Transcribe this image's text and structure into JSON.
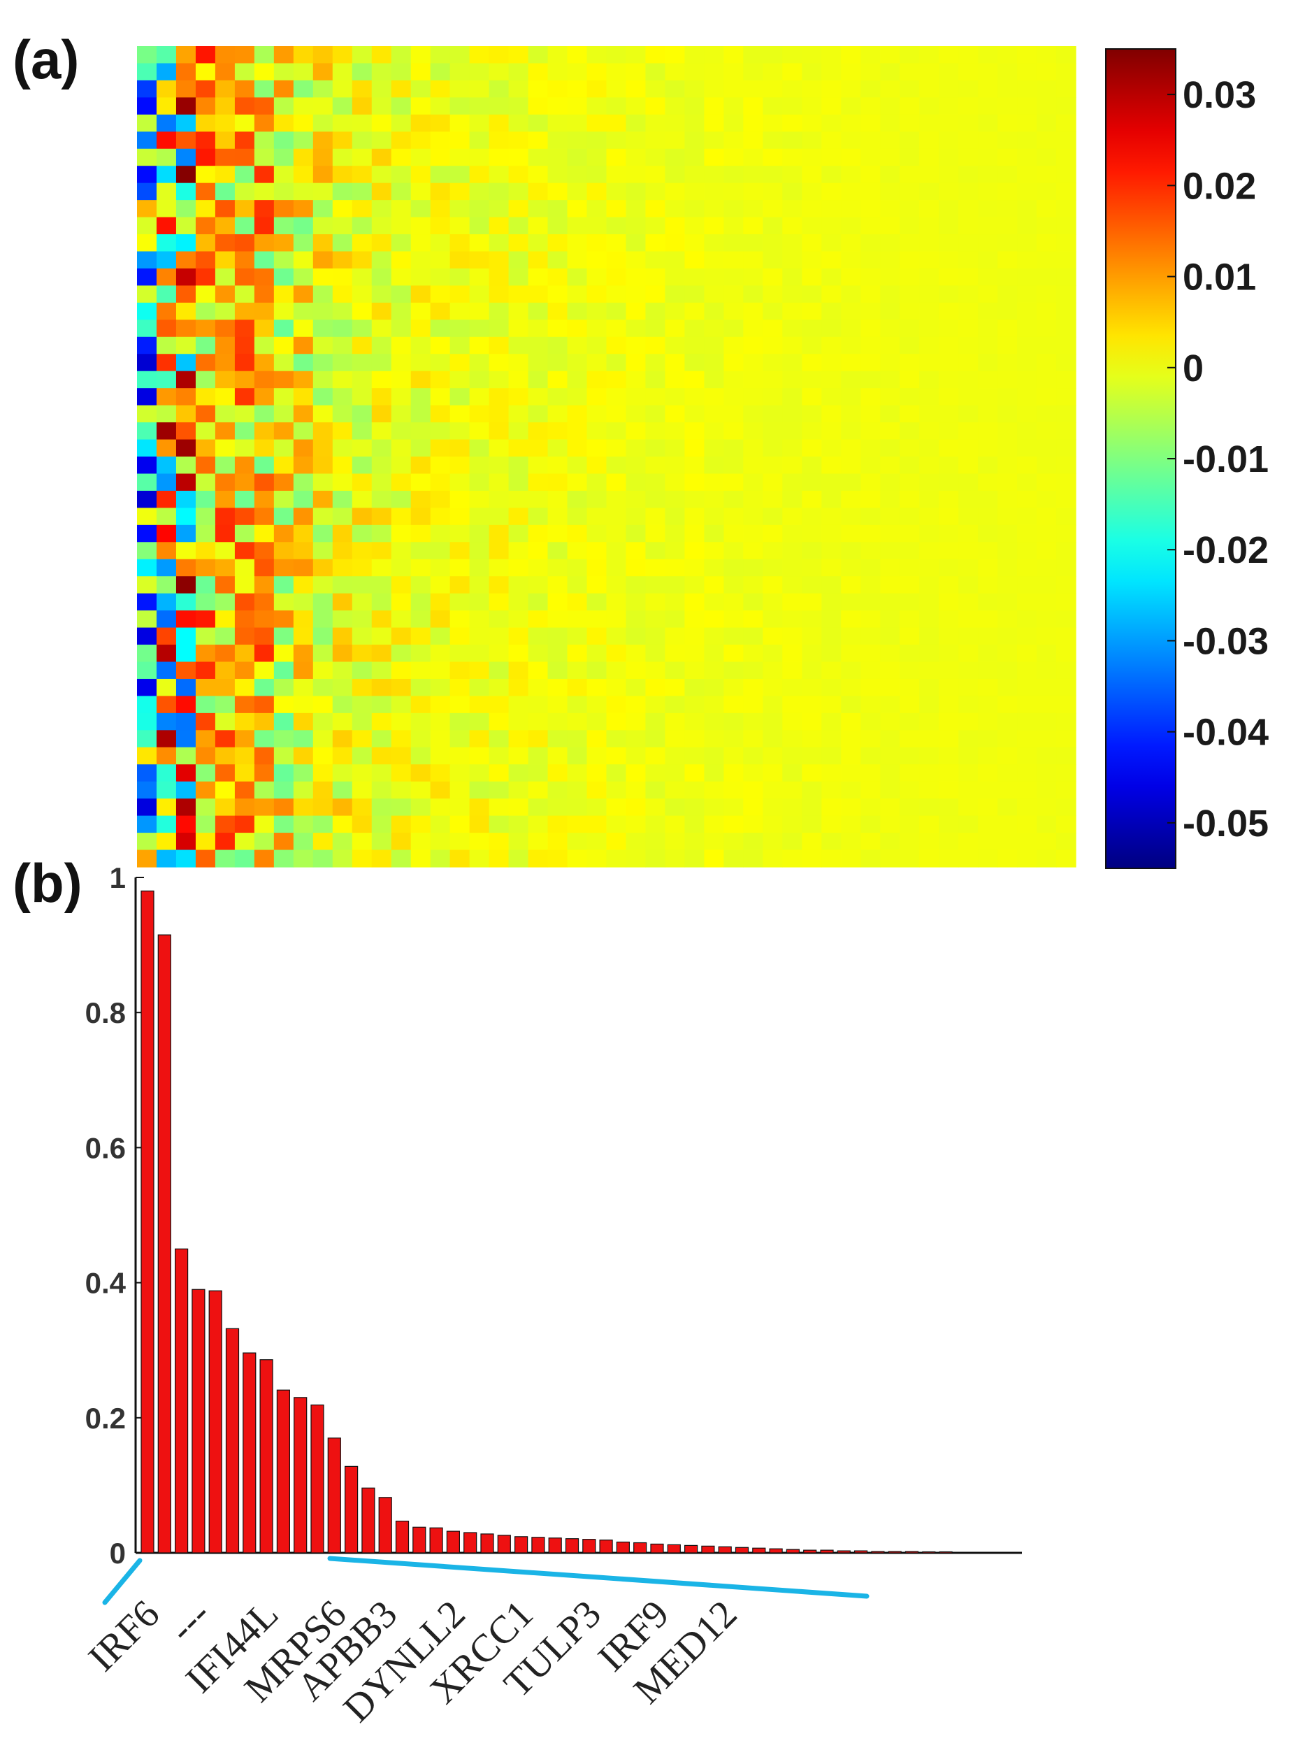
{
  "panels": {
    "a_label": "(a)",
    "b_label": "(b)"
  },
  "chart_data": [
    {
      "type": "heatmap",
      "panel": "(a)",
      "rows": 48,
      "columns": 48,
      "colormap": "jet",
      "clim": [
        -0.055,
        0.035
      ],
      "colorbar_ticks": [
        "0.03",
        "0.02",
        "0.01",
        "0",
        "-0.01",
        "-0.02",
        "-0.03",
        "-0.04",
        "-0.05"
      ],
      "colorbar_tick_values": [
        0.03,
        0.02,
        0.01,
        0,
        -0.01,
        -0.02,
        -0.03,
        -0.04,
        -0.05
      ],
      "colorbar_placement": "right",
      "description_of_pattern": "Large positive/negative weights concentrated in the left ~14 columns; values decay toward 0 (yellow) for columns further right."
    },
    {
      "type": "bar",
      "panel": "(b)",
      "bar_color": "#ee1111",
      "ylim": [
        0,
        1
      ],
      "yticks": [
        "0",
        "0.2",
        "0.4",
        "0.6",
        "0.8",
        "1"
      ],
      "ytick_values": [
        0,
        0.2,
        0.4,
        0.6,
        0.8,
        1
      ],
      "values": [
        0.98,
        0.915,
        0.45,
        0.39,
        0.388,
        0.332,
        0.296,
        0.286,
        0.241,
        0.23,
        0.219,
        0.17,
        0.128,
        0.096,
        0.082,
        0.047,
        0.038,
        0.037,
        0.032,
        0.03,
        0.028,
        0.026,
        0.024,
        0.023,
        0.022,
        0.021,
        0.02,
        0.019,
        0.016,
        0.015,
        0.013,
        0.012,
        0.011,
        0.01,
        0.009,
        0.008,
        0.007,
        0.006,
        0.005,
        0.004,
        0.004,
        0.003,
        0.003,
        0.002,
        0.002,
        0.002,
        0.001,
        0.001
      ],
      "xtick_labels": [
        "IRF6",
        "---",
        "IFI44L",
        "MRPS6",
        "APBB3",
        "DYNLL2",
        "XRCC1",
        "TULP3",
        "IRF9",
        "MED12"
      ],
      "xtick_positions": [
        1,
        4,
        8,
        12,
        15,
        19,
        23,
        27,
        31,
        35
      ],
      "annotation_color": "#1ab4e6"
    }
  ]
}
